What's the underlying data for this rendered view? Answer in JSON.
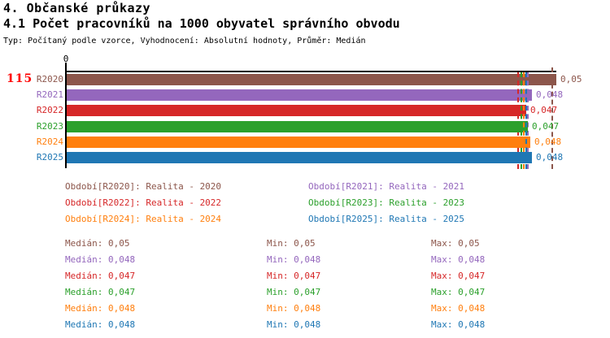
{
  "header": {
    "line1": "4. Občanské průkazy",
    "line2": "4.1 Počet pracovníků na 1000 obyvatel správního obvodu",
    "subtitle": "Typ: Počítaný podle vzorce, Vyhodnocení: Absolutní hodnoty, Průměr: Medián"
  },
  "chart_meta": {
    "count_label": "115",
    "count_color": "#ff0000",
    "axis_zero_label": "0",
    "axis_color": "#000000",
    "background": "#ffffff"
  },
  "chart_data": {
    "type": "bar",
    "orientation": "horizontal",
    "title": "4.1 Počet pracovníků na 1000 obyvatel správního obvodu",
    "xlabel": "",
    "ylabel": "",
    "xlim": [
      0,
      0.05
    ],
    "grid": false,
    "legend_position": "below",
    "categories": [
      "R2020",
      "R2021",
      "R2022",
      "R2023",
      "R2024",
      "R2025"
    ],
    "series": [
      {
        "category": "R2020",
        "legend_label": "Období[R2020]: Realita - 2020",
        "color": "#8c564b",
        "value": 0.05,
        "value_precise": 0.05,
        "value_label": "0,05",
        "median_text": "Medián: 0,05",
        "min_text": "Min: 0,05",
        "max_text": "Max: 0,05",
        "minmax_marker": 0.0497
      },
      {
        "category": "R2021",
        "legend_label": "Období[R2021]: Realita - 2021",
        "color": "#9467bd",
        "value": 0.048,
        "value_precise": 0.0475,
        "value_label": "0,048",
        "median_text": "Medián: 0,048",
        "min_text": "Min: 0,048",
        "max_text": "Max: 0,048",
        "minmax_marker": 0.0472
      },
      {
        "category": "R2022",
        "legend_label": "Období[R2022]: Realita - 2022",
        "color": "#d62728",
        "value": 0.047,
        "value_precise": 0.0469,
        "value_label": "0,047",
        "median_text": "Medián: 0,047",
        "min_text": "Min: 0,047",
        "max_text": "Max: 0,047",
        "minmax_marker": 0.0462
      },
      {
        "category": "R2023",
        "legend_label": "Období[R2023]: Realita - 2023",
        "color": "#2ca02c",
        "value": 0.047,
        "value_precise": 0.0471,
        "value_label": "0,047",
        "median_text": "Medián: 0,047",
        "min_text": "Min: 0,047",
        "max_text": "Max: 0,047",
        "minmax_marker": 0.0465
      },
      {
        "category": "R2024",
        "legend_label": "Období[R2024]: Realita - 2024",
        "color": "#ff7f0e",
        "value": 0.048,
        "value_precise": 0.04735,
        "value_label": "0,048",
        "median_text": "Medián: 0,048",
        "min_text": "Min: 0,048",
        "max_text": "Max: 0,048",
        "minmax_marker": 0.0468
      },
      {
        "category": "R2025",
        "legend_label": "Období[R2025]: Realita - 2025",
        "color": "#1f77b4",
        "value": 0.048,
        "value_precise": 0.0475,
        "value_label": "0,048",
        "median_text": "Medián: 0,048",
        "min_text": "Min: 0,048",
        "max_text": "Max: 0,048",
        "minmax_marker": 0.047
      }
    ]
  }
}
